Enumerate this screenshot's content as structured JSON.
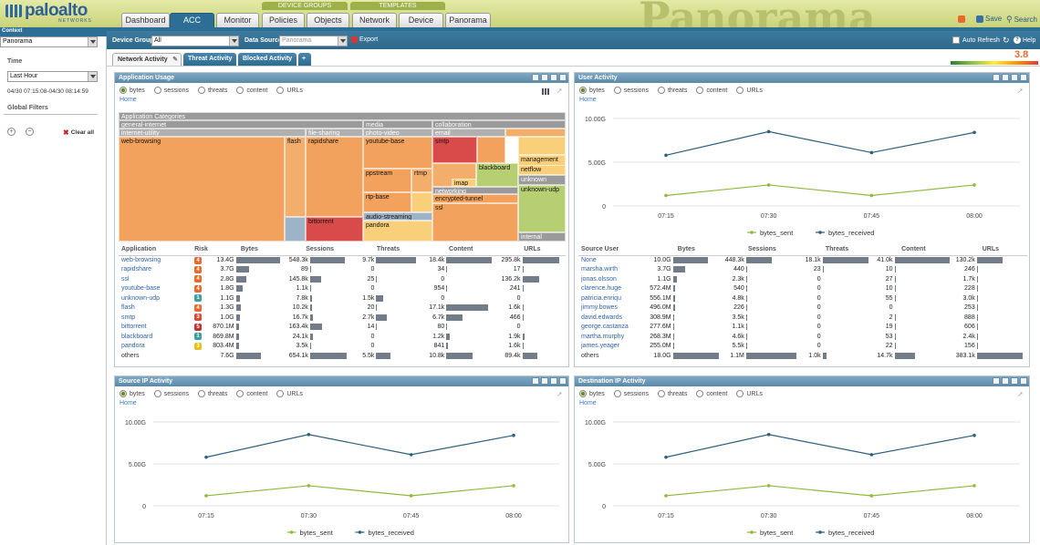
{
  "brand": {
    "name": "paloalto",
    "sub": "NETWORKS",
    "deco": "Panorama"
  },
  "nav": {
    "groups": [
      "DEVICE GROUPS",
      "TEMPLATES"
    ],
    "tabs": [
      "Dashboard",
      "ACC",
      "Monitor",
      "Policies",
      "Objects",
      "Network",
      "Device",
      "Panorama"
    ],
    "active": "ACC",
    "save": "Save",
    "search": "Search"
  },
  "context": {
    "label": "Context",
    "value": "Panorama"
  },
  "time": {
    "label": "Time",
    "value": "Last Hour",
    "range": "04/30 07:15:08-04/30 08:14:59"
  },
  "filters": {
    "label": "Global Filters",
    "clear": "Clear all"
  },
  "toolbar": {
    "device_group_label": "Device Group",
    "device_group_value": "All",
    "data_source_label": "Data Source",
    "data_source_value": "Panorama",
    "export": "Export",
    "auto_refresh": "Auto Refresh",
    "help": "Help",
    "risk_value": "3.8"
  },
  "acc_tabs": [
    "Network Activity",
    "Threat Activity",
    "Blocked Activity",
    "+"
  ],
  "radios": [
    "bytes",
    "sessions",
    "threats",
    "content",
    "URLs"
  ],
  "home": "Home",
  "colors": {
    "sent": "#8fba3c",
    "received": "#2d5f7e",
    "header": "#2d6e96"
  },
  "widgets": {
    "app_usage": {
      "title": "Application Usage",
      "treemap": {
        "root": "Application Categories",
        "categories": [
          "general-internet",
          "media",
          "collaboration"
        ],
        "subcategories": [
          "internet-utility",
          "file-sharing",
          "photo-video",
          "email",
          "networking"
        ],
        "cells": [
          "web-browsing",
          "flash",
          "rapidshare",
          "youtube-base",
          "smtp",
          "bittorrent",
          "ppstream",
          "rtmp",
          "rtp-base",
          "audio-streaming",
          "pandora",
          "blackboard",
          "management",
          "netflow",
          "unknown",
          "unknown-udp",
          "imap",
          "encrypted-tunnel",
          "ssl",
          "internal"
        ]
      },
      "columns": [
        "Application",
        "Risk",
        "Bytes",
        "Sessions",
        "Threats",
        "Content",
        "URLs"
      ],
      "rows": [
        {
          "name": "web-browsing",
          "risk": "4",
          "rc": "#e9692c",
          "bytes": "13.4G",
          "bw": 48,
          "sessions": "548.3k",
          "sw": 38,
          "threats": "9.7k",
          "tw": 44,
          "content": "18.4k",
          "cw": 50,
          "urls": "295.8k",
          "uw": 40
        },
        {
          "name": "rapidshare",
          "risk": "4",
          "rc": "#e9692c",
          "bytes": "3.7G",
          "bw": 14,
          "sessions": "89",
          "sw": 1,
          "threats": "0",
          "tw": 0,
          "content": "34",
          "cw": 1,
          "urls": "17",
          "uw": 1
        },
        {
          "name": "ssl",
          "risk": "4",
          "rc": "#e9692c",
          "bytes": "2.8G",
          "bw": 11,
          "sessions": "145.8k",
          "sw": 12,
          "threats": "25",
          "tw": 1,
          "content": "0",
          "cw": 0,
          "urls": "136.2k",
          "uw": 18
        },
        {
          "name": "youtube-base",
          "risk": "4",
          "rc": "#e9692c",
          "bytes": "1.8G",
          "bw": 7,
          "sessions": "1.1k",
          "sw": 1,
          "threats": "0",
          "tw": 0,
          "content": "954",
          "cw": 1,
          "urls": "241",
          "uw": 1
        },
        {
          "name": "unknown-udp",
          "risk": "1",
          "rc": "#3aa0a0",
          "bytes": "1.1G",
          "bw": 4,
          "sessions": "7.8k",
          "sw": 2,
          "threats": "1.5k",
          "tw": 8,
          "content": "0",
          "cw": 0,
          "urls": "0",
          "uw": 0
        },
        {
          "name": "flash",
          "risk": "4",
          "rc": "#e9692c",
          "bytes": "1.3G",
          "bw": 5,
          "sessions": "10.2k",
          "sw": 2,
          "threats": "20",
          "tw": 1,
          "content": "17.1k",
          "cw": 46,
          "urls": "1.6k",
          "uw": 1
        },
        {
          "name": "smtp",
          "risk": "3",
          "rc": "#d94a35",
          "bytes": "1.0G",
          "bw": 4,
          "sessions": "16.7k",
          "sw": 3,
          "threats": "2.7k",
          "tw": 12,
          "content": "6.7k",
          "cw": 18,
          "urls": "466",
          "uw": 1
        },
        {
          "name": "bittorrent",
          "risk": "5",
          "rc": "#c6302f",
          "bytes": "870.1M",
          "bw": 3,
          "sessions": "163.4k",
          "sw": 13,
          "threats": "14",
          "tw": 1,
          "content": "80",
          "cw": 1,
          "urls": "0",
          "uw": 0
        },
        {
          "name": "blackboard",
          "risk": "1",
          "rc": "#3aa0a0",
          "bytes": "869.8M",
          "bw": 3,
          "sessions": "24.1k",
          "sw": 3,
          "threats": "0",
          "tw": 0,
          "content": "1.2k",
          "cw": 4,
          "urls": "1.9k",
          "uw": 2
        },
        {
          "name": "pandora",
          "risk": "3",
          "rc": "#e5c21b",
          "bytes": "803.4M",
          "bw": 3,
          "sessions": "3.5k",
          "sw": 1,
          "threats": "0",
          "tw": 0,
          "content": "841",
          "cw": 2,
          "urls": "1.6k",
          "uw": 1
        },
        {
          "name": "others",
          "risk": "",
          "rc": "",
          "bytes": "7.6G",
          "bw": 27,
          "sessions": "654.1k",
          "sw": 40,
          "threats": "5.5k",
          "tw": 16,
          "content": "10.8k",
          "cw": 29,
          "urls": "89.4k",
          "uw": 16
        }
      ]
    },
    "user_activity": {
      "title": "User Activity",
      "columns": [
        "Source User",
        "Bytes",
        "Sessions",
        "Threats",
        "Content",
        "URLs"
      ],
      "rows": [
        {
          "name": "None",
          "bytes": "10.0G",
          "bw": 38,
          "sessions": "448.3k",
          "sw": 28,
          "threats": "18.1k",
          "tw": 50,
          "content": "41.0k",
          "cw": 60,
          "urls": "130.2k",
          "uw": 28
        },
        {
          "name": "marsha.wirth",
          "bytes": "3.7G",
          "bw": 13,
          "sessions": "440",
          "sw": 1,
          "threats": "23",
          "tw": 1,
          "content": "10",
          "cw": 1,
          "urls": "246",
          "uw": 1
        },
        {
          "name": "jonas.olsson",
          "bytes": "1.1G",
          "bw": 4,
          "sessions": "2.3k",
          "sw": 1,
          "threats": "0",
          "tw": 0,
          "content": "27",
          "cw": 1,
          "urls": "1.7k",
          "uw": 1
        },
        {
          "name": "clarence.huge",
          "bytes": "572.4M",
          "bw": 2,
          "sessions": "540",
          "sw": 1,
          "threats": "0",
          "tw": 0,
          "content": "10",
          "cw": 1,
          "urls": "228",
          "uw": 1
        },
        {
          "name": "patricia.enriqu",
          "bytes": "556.1M",
          "bw": 2,
          "sessions": "4.8k",
          "sw": 1,
          "threats": "0",
          "tw": 0,
          "content": "55",
          "cw": 1,
          "urls": "3.0k",
          "uw": 1
        },
        {
          "name": "jimmy.bowes",
          "bytes": "496.0M",
          "bw": 2,
          "sessions": "226",
          "sw": 1,
          "threats": "0",
          "tw": 0,
          "content": "0",
          "cw": 0,
          "urls": "253",
          "uw": 1
        },
        {
          "name": "david.edwards",
          "bytes": "308.9M",
          "bw": 1,
          "sessions": "3.5k",
          "sw": 1,
          "threats": "0",
          "tw": 0,
          "content": "2",
          "cw": 1,
          "urls": "888",
          "uw": 1
        },
        {
          "name": "george.castanza",
          "bytes": "277.6M",
          "bw": 1,
          "sessions": "1.1k",
          "sw": 1,
          "threats": "0",
          "tw": 0,
          "content": "19",
          "cw": 1,
          "urls": "606",
          "uw": 1
        },
        {
          "name": "martha.murphy",
          "bytes": "268.3M",
          "bw": 1,
          "sessions": "4.6k",
          "sw": 1,
          "threats": "0",
          "tw": 0,
          "content": "53",
          "cw": 1,
          "urls": "2.4k",
          "uw": 1
        },
        {
          "name": "james.yeager",
          "bytes": "255.0M",
          "bw": 1,
          "sessions": "5.5k",
          "sw": 1,
          "threats": "0",
          "tw": 0,
          "content": "22",
          "cw": 1,
          "urls": "156",
          "uw": 1
        },
        {
          "name": "others",
          "bytes": "18.0G",
          "bw": 50,
          "sessions": "1.1M",
          "sw": 55,
          "threats": "1.0k",
          "tw": 4,
          "content": "14.7k",
          "cw": 22,
          "urls": "383.1k",
          "uw": 50
        }
      ]
    },
    "source_ip": {
      "title": "Source IP Activity"
    },
    "destination_ip": {
      "title": "Destination IP Activity"
    }
  },
  "chart_data": [
    {
      "type": "line",
      "title": "User Activity",
      "x": [
        "07:15",
        "07:30",
        "07:45",
        "08:00"
      ],
      "yticks": [
        "0",
        "5.00G",
        "10.00G"
      ],
      "ylim": [
        0,
        10
      ],
      "series": [
        {
          "name": "bytes_sent",
          "values": [
            1.2,
            2.4,
            1.2,
            2.4
          ]
        },
        {
          "name": "bytes_received",
          "values": [
            5.8,
            8.5,
            6.1,
            8.4
          ]
        }
      ]
    },
    {
      "type": "line",
      "title": "Source IP Activity",
      "x": [
        "07:15",
        "07:30",
        "07:45",
        "08:00"
      ],
      "yticks": [
        "0",
        "5.00G",
        "10.00G"
      ],
      "ylim": [
        0,
        10
      ],
      "series": [
        {
          "name": "bytes_sent",
          "values": [
            1.2,
            2.4,
            1.2,
            2.4
          ]
        },
        {
          "name": "bytes_received",
          "values": [
            5.8,
            8.5,
            6.1,
            8.4
          ]
        }
      ]
    },
    {
      "type": "line",
      "title": "Destination IP Activity",
      "x": [
        "07:15",
        "07:30",
        "07:45",
        "08:00"
      ],
      "yticks": [
        "0",
        "5.00G",
        "10.00G"
      ],
      "ylim": [
        0,
        10
      ],
      "series": [
        {
          "name": "bytes_sent",
          "values": [
            1.2,
            2.4,
            1.2,
            2.4
          ]
        },
        {
          "name": "bytes_received",
          "values": [
            5.8,
            8.5,
            6.1,
            8.4
          ]
        }
      ]
    }
  ]
}
